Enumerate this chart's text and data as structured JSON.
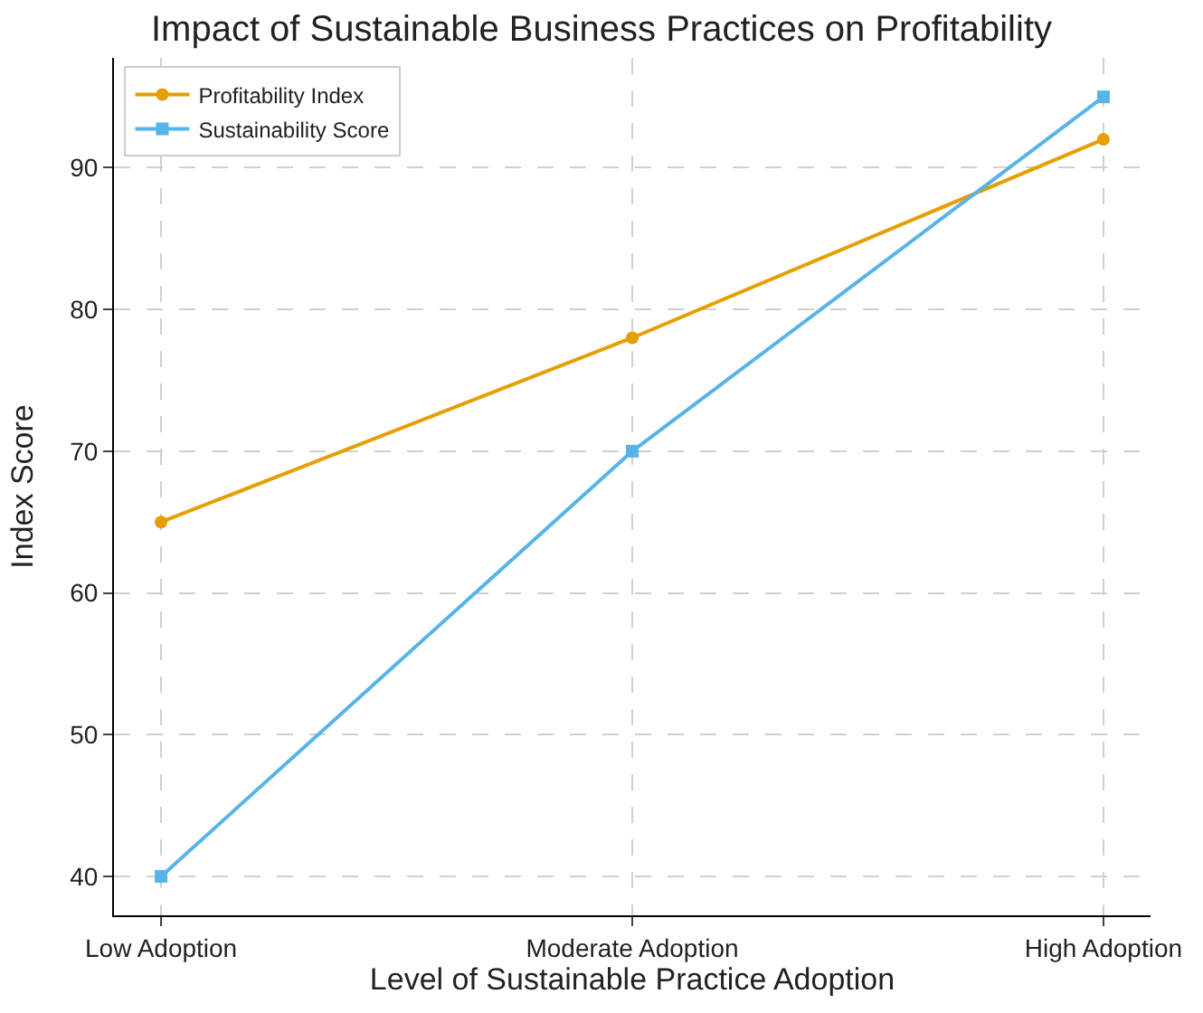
{
  "chart_data": {
    "type": "line",
    "title": "Impact of Sustainable Business Practices on Profitability",
    "xlabel": "Level of Sustainable Practice Adoption",
    "ylabel": "Index Score",
    "categories": [
      "Low Adoption",
      "Moderate Adoption",
      "High Adoption"
    ],
    "series": [
      {
        "name": "Profitability Index",
        "color": "#e69f00",
        "values": [
          65,
          78,
          92
        ],
        "marker": "circle"
      },
      {
        "name": "Sustainability Score",
        "color": "#56b4e9",
        "values": [
          40,
          70,
          95
        ],
        "marker": "square"
      }
    ],
    "ylim": [
      37.25,
      97.75
    ],
    "yticks": [
      40,
      50,
      60,
      70,
      80,
      90
    ],
    "grid": true,
    "legend": "top left",
    "line_style": "solid"
  }
}
